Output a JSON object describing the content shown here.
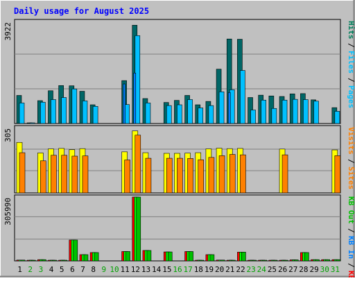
{
  "chart_data": {
    "type": "bar",
    "title": "Daily usage for August 2025",
    "categories": [
      "1",
      "2",
      "3",
      "4",
      "5",
      "6",
      "7",
      "8",
      "9",
      "10",
      "11",
      "12",
      "13",
      "14",
      "15",
      "16",
      "17",
      "18",
      "19",
      "20",
      "21",
      "22",
      "23",
      "24",
      "25",
      "26",
      "27",
      "28",
      "29",
      "30",
      "31"
    ],
    "weekend_days": [
      "2",
      "3",
      "9",
      "10",
      "16",
      "17",
      "23",
      "24",
      "30",
      "31"
    ],
    "panels": [
      {
        "key": "top",
        "ymax_label": "3922",
        "ylim": [
          0,
          3922
        ],
        "series": [
          {
            "name": "Hits",
            "color": "#006666",
            "values": [
              1080,
              20,
              880,
              1260,
              1460,
              1450,
              1240,
              720,
              0,
              0,
              1650,
              3780,
              960,
              0,
              810,
              890,
              1080,
              720,
              850,
              2090,
              3250,
              3240,
              1000,
              1090,
              1060,
              1040,
              1140,
              1150,
              910,
              0,
              610
            ]
          },
          {
            "name": "Files",
            "color": "#00c0ff",
            "values": [
              790,
              20,
              820,
              920,
              1000,
              1330,
              870,
              660,
              0,
              0,
              730,
              3380,
              790,
              0,
              690,
              720,
              920,
              600,
              690,
              1220,
              1300,
              2040,
              520,
              900,
              580,
              900,
              930,
              920,
              860,
              0,
              470
            ]
          },
          {
            "name": "Pages",
            "color": "#0080ff",
            "values": [
              0,
              0,
              0,
              0,
              0,
              0,
              0,
              0,
              0,
              0,
              1520,
              1940,
              0,
              0,
              0,
              0,
              0,
              0,
              0,
              0,
              1190,
              0,
              0,
              0,
              0,
              0,
              0,
              0,
              0,
              0,
              0
            ]
          }
        ]
      },
      {
        "key": "middle",
        "ymax_label": "305",
        "ylim": [
          0,
          305
        ],
        "series": [
          {
            "name": "Visits",
            "color": "#ffff00",
            "values": [
              236,
              0,
              187,
              206,
              208,
              202,
              207,
              0,
              0,
              0,
              192,
              290,
              188,
              0,
              185,
              185,
              186,
              188,
              206,
              209,
              207,
              208,
              0,
              0,
              0,
              205,
              0,
              0,
              0,
              0,
              201
            ]
          },
          {
            "name": "Sites",
            "color": "#ff8000",
            "values": [
              188,
              0,
              150,
              176,
              176,
              172,
              173,
              0,
              0,
              0,
              154,
              270,
              162,
              0,
              162,
              162,
              161,
              155,
              166,
              174,
              180,
              178,
              0,
              0,
              0,
              178,
              0,
              0,
              0,
              0,
              174
            ]
          }
        ]
      },
      {
        "key": "bottom",
        "ymax_label": "305990",
        "ylim": [
          0,
          305990
        ],
        "series": [
          {
            "name": "KB F",
            "color": "#ff0000",
            "values": [
              4000,
              3000,
              6000,
              2000,
              2000,
              100000,
              30000,
              40000,
              0,
              0,
              45000,
              305990,
              50000,
              0,
              43000,
              0,
              45000,
              2000,
              30000,
              4000,
              3000,
              42000,
              3000,
              3000,
              3000,
              2000,
              5000,
              40000,
              6000,
              6000,
              6000
            ]
          },
          {
            "name": "KB In",
            "color": "#00ff00",
            "values": [
              4000,
              3000,
              6000,
              2000,
              2000,
              100000,
              30000,
              40000,
              0,
              0,
              45000,
              305990,
              50000,
              0,
              43000,
              0,
              45000,
              2000,
              30000,
              4000,
              3000,
              42000,
              3000,
              3000,
              3000,
              2000,
              5000,
              40000,
              6000,
              6000,
              6000
            ]
          },
          {
            "name": "KB Out",
            "color": "#00c000",
            "values": [
              4000,
              3000,
              6000,
              2000,
              2000,
              100000,
              30000,
              40000,
              0,
              0,
              45000,
              305990,
              50000,
              0,
              43000,
              0,
              45000,
              2000,
              30000,
              4000,
              3000,
              42000,
              3000,
              3000,
              3000,
              2000,
              5000,
              40000,
              6000,
              6000,
              6000
            ]
          }
        ]
      }
    ],
    "right_labels": {
      "top": [
        {
          "text": "Hits",
          "color": "#00805c"
        },
        {
          "text": "/",
          "color": "#000000"
        },
        {
          "text": "Files",
          "color": "#00c0ff"
        },
        {
          "text": "/",
          "color": "#000000"
        },
        {
          "text": "Pages",
          "color": "#00c0ff"
        }
      ],
      "middle": [
        {
          "text": "Visits",
          "color": "#ff8000"
        },
        {
          "text": "/",
          "color": "#000000"
        },
        {
          "text": "Sites",
          "color": "#ff8000"
        }
      ],
      "bottom": [
        {
          "text": "KB Out",
          "color": "#00c000"
        },
        {
          "text": "/",
          "color": "#000000"
        },
        {
          "text": "KB In",
          "color": "#0080ff"
        },
        {
          "text": "/",
          "color": "#000000"
        },
        {
          "text": "KB F",
          "color": "#ff0000"
        }
      ]
    },
    "colors": {
      "background": "#c0c0c0",
      "title": "#0000ff",
      "weekday_label": "#000000",
      "weekend_label": "#00a000"
    }
  }
}
